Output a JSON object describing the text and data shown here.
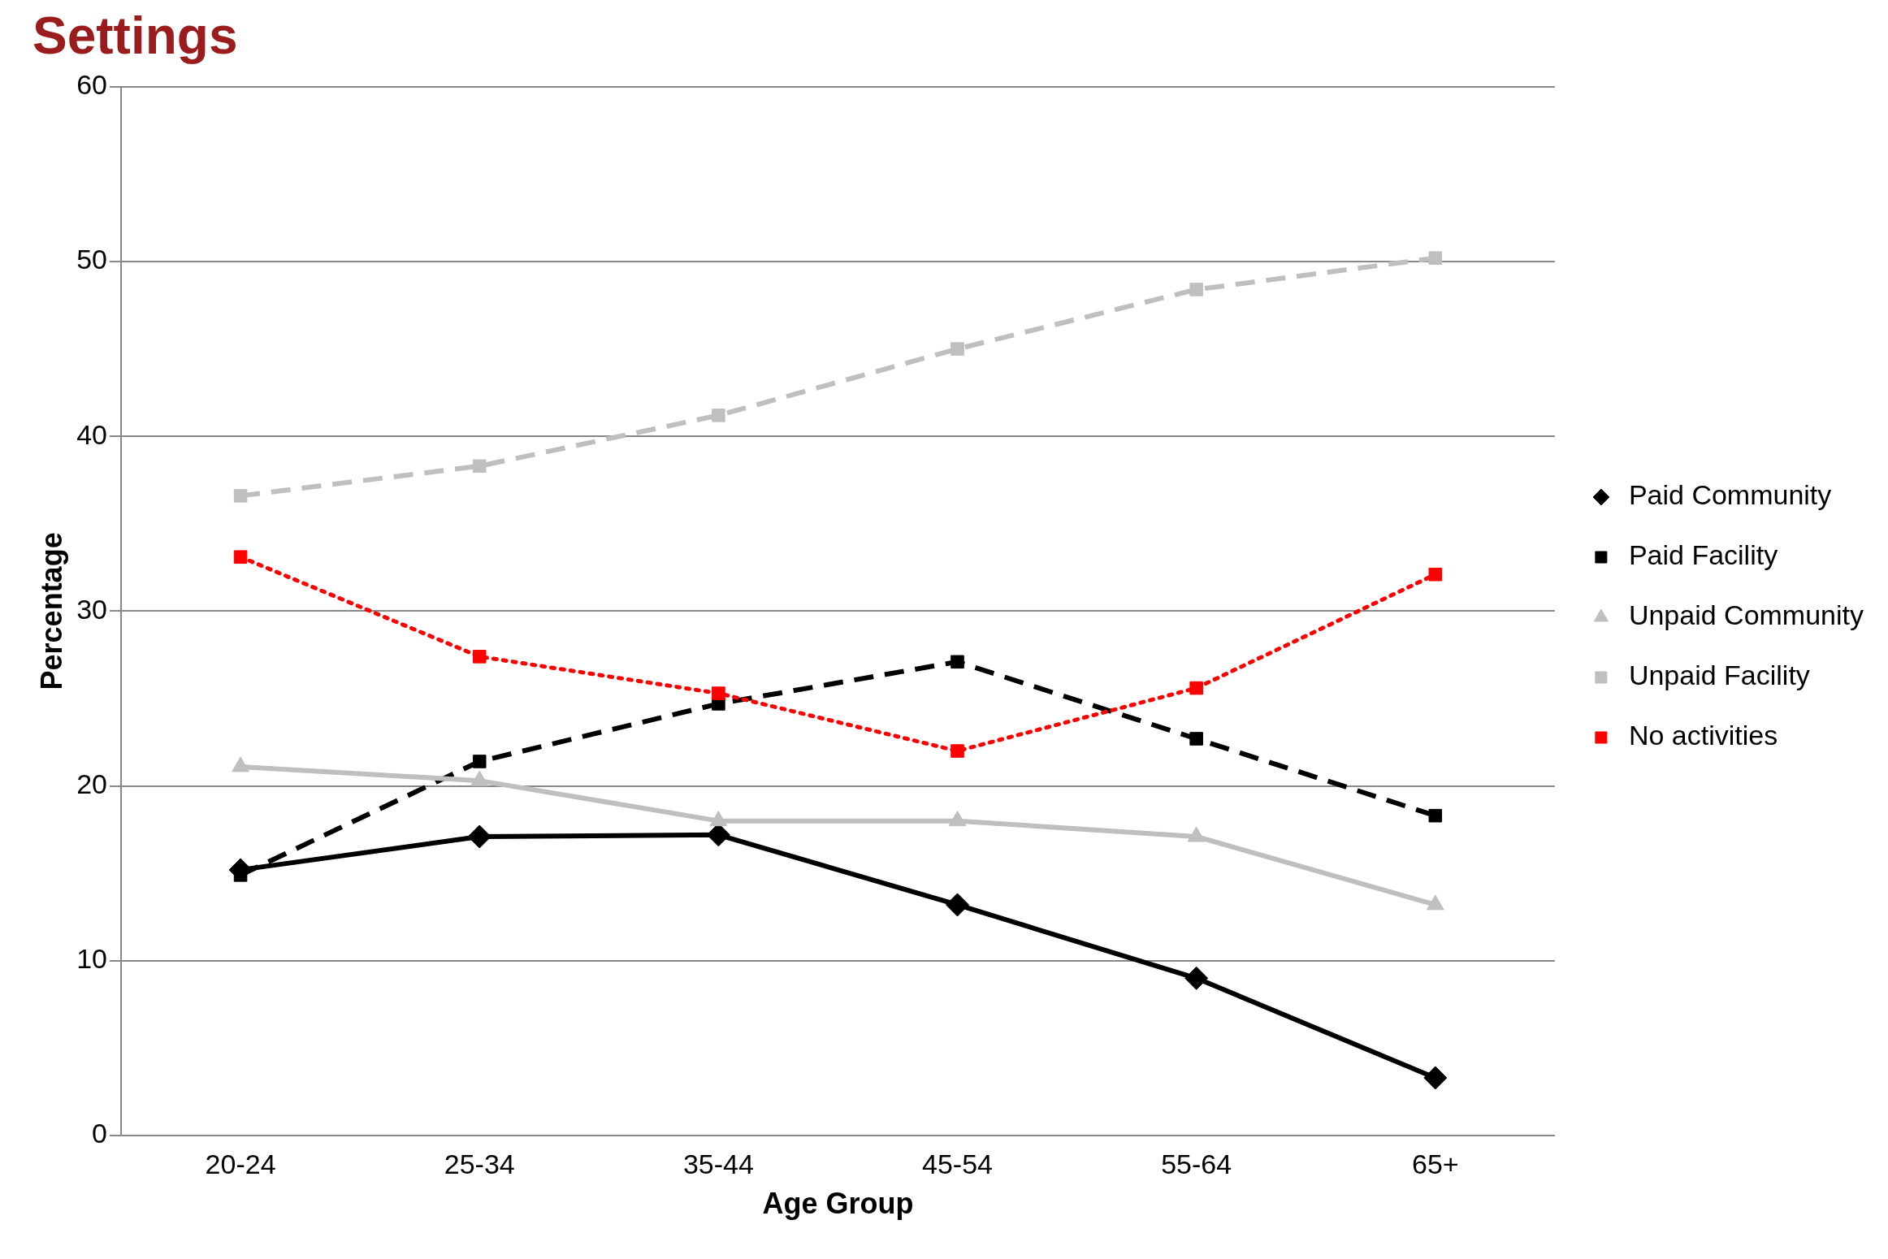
{
  "chart_data": {
    "type": "line",
    "title": "Settings",
    "xlabel": "Age Group",
    "ylabel": "Percentage",
    "categories": [
      "20-24",
      "25-34",
      "35-44",
      "45-54",
      "55-64",
      "65+"
    ],
    "ylim": [
      0,
      60
    ],
    "yticks": [
      0,
      10,
      20,
      30,
      40,
      50,
      60
    ],
    "grid": "y",
    "legend": "right",
    "series": [
      {
        "name": "Paid Community",
        "color": "#000000",
        "marker": "diamond",
        "line_style": "solid",
        "values": [
          15.2,
          17.1,
          17.2,
          13.2,
          9.0,
          3.3
        ]
      },
      {
        "name": "Paid Facility",
        "color": "#000000",
        "marker": "square",
        "line_style": "dashed",
        "values": [
          14.9,
          21.4,
          24.7,
          27.1,
          22.7,
          18.3
        ]
      },
      {
        "name": "Unpaid Community",
        "color": "#bfbfbf",
        "marker": "triangle",
        "line_style": "solid",
        "values": [
          21.1,
          20.3,
          18.0,
          18.0,
          17.1,
          13.2
        ]
      },
      {
        "name": "Unpaid Facility",
        "color": "#bfbfbf",
        "marker": "square",
        "line_style": "dashed",
        "values": [
          36.6,
          38.3,
          41.2,
          45.0,
          48.4,
          50.2
        ]
      },
      {
        "name": "No activities",
        "color": "#ff0000",
        "marker": "square",
        "line_style": "dotted",
        "values": [
          33.1,
          27.4,
          25.3,
          22.0,
          25.6,
          32.1
        ]
      }
    ]
  }
}
